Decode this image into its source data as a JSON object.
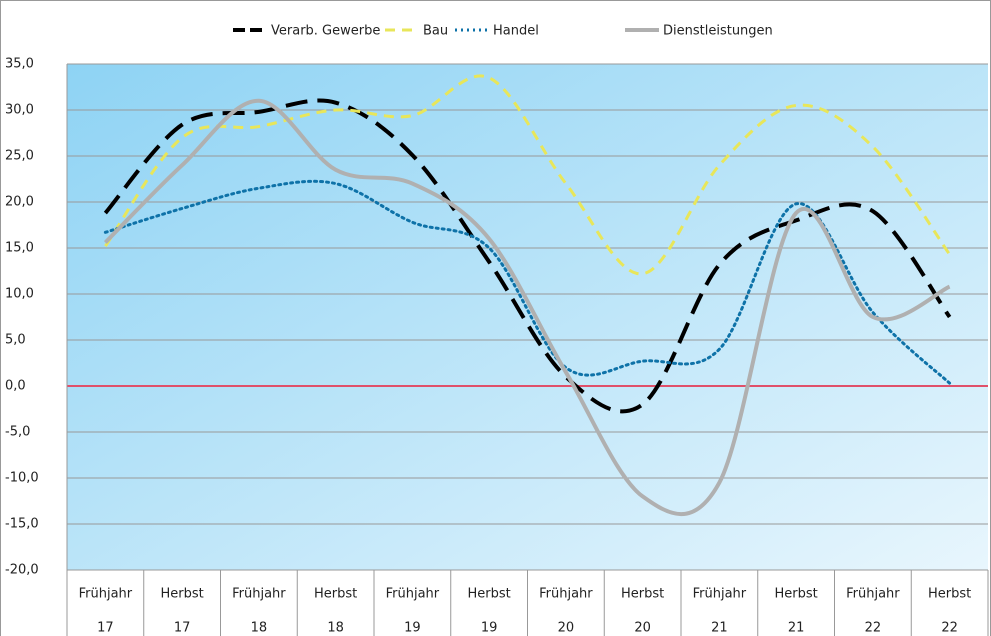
{
  "chart_data": {
    "type": "line",
    "categories": [
      [
        "Frühjahr",
        "17"
      ],
      [
        "Herbst",
        "17"
      ],
      [
        "Frühjahr",
        "18"
      ],
      [
        "Herbst",
        "18"
      ],
      [
        "Frühjahr",
        "19"
      ],
      [
        "Herbst",
        "19"
      ],
      [
        "Frühjahr",
        "20"
      ],
      [
        "Herbst",
        "20"
      ],
      [
        "Frühjahr",
        "21"
      ],
      [
        "Herbst",
        "21"
      ],
      [
        "Frühjahr",
        "22"
      ],
      [
        "Herbst",
        "22"
      ]
    ],
    "series": [
      {
        "name": "Verarb. Gewerbe",
        "color": "#000000",
        "dash": "22 10",
        "width": 4,
        "values": [
          18.8,
          28.4,
          29.8,
          30.8,
          25.1,
          13.5,
          1.0,
          -2.0,
          13.2,
          18.0,
          19.0,
          7.5
        ]
      },
      {
        "name": "Bau",
        "color": "#e8e65a",
        "dash": "10 7",
        "width": 3,
        "values": [
          15.2,
          27.0,
          28.2,
          30.0,
          29.4,
          33.5,
          22.0,
          12.2,
          24.0,
          30.5,
          26.0,
          14.3
        ]
      },
      {
        "name": "Handel",
        "color": "#0e72a8",
        "dash": "2 4",
        "width": 3,
        "values": [
          16.7,
          19.3,
          21.5,
          22.0,
          17.8,
          15.0,
          2.0,
          2.7,
          4.0,
          19.8,
          8.0,
          0.3
        ]
      },
      {
        "name": "Dienstleistungen",
        "color": "#b0b0b0",
        "dash": "none",
        "width": 4,
        "values": [
          15.6,
          24.0,
          31.0,
          23.5,
          22.0,
          16.0,
          1.5,
          -12.0,
          -10.5,
          18.8,
          7.5,
          10.8
        ]
      }
    ],
    "ylim": [
      -20,
      35
    ],
    "yticks": [
      {
        "value": -20,
        "label": "-20,0"
      },
      {
        "value": -15,
        "label": "-15,0"
      },
      {
        "value": -10,
        "label": "-10,0"
      },
      {
        "value": -5,
        "label": "-5,0"
      },
      {
        "value": 0,
        "label": "0,0"
      },
      {
        "value": 5,
        "label": "5,0"
      },
      {
        "value": 10,
        "label": "10,0"
      },
      {
        "value": 15,
        "label": "15,0"
      },
      {
        "value": 20,
        "label": "20,0"
      },
      {
        "value": 25,
        "label": "25,0"
      },
      {
        "value": 30,
        "label": "30,0"
      },
      {
        "value": 35,
        "label": "35,0"
      }
    ],
    "grid": true,
    "zero_line_color": "#e0506a",
    "legend": "top"
  }
}
